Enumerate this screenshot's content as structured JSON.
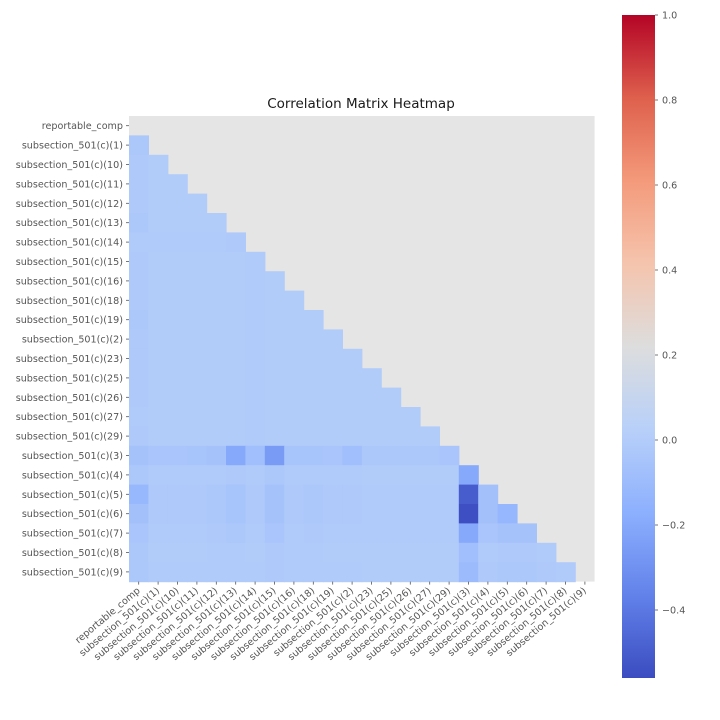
{
  "chart_data": {
    "type": "heatmap",
    "title": "Correlation Matrix Heatmap",
    "mask": "upper-triangle",
    "variables": [
      "reportable_comp",
      "subsection_501(c)(1)",
      "subsection_501(c)(10)",
      "subsection_501(c)(11)",
      "subsection_501(c)(12)",
      "subsection_501(c)(13)",
      "subsection_501(c)(14)",
      "subsection_501(c)(15)",
      "subsection_501(c)(16)",
      "subsection_501(c)(18)",
      "subsection_501(c)(19)",
      "subsection_501(c)(2)",
      "subsection_501(c)(23)",
      "subsection_501(c)(25)",
      "subsection_501(c)(26)",
      "subsection_501(c)(27)",
      "subsection_501(c)(29)",
      "subsection_501(c)(3)",
      "subsection_501(c)(4)",
      "subsection_501(c)(5)",
      "subsection_501(c)(6)",
      "subsection_501(c)(7)",
      "subsection_501(c)(8)",
      "subsection_501(c)(9)"
    ],
    "matrix_lower": [
      [],
      [
        -0.03
      ],
      [
        -0.02,
        0.0
      ],
      [
        -0.02,
        0.0,
        0.0
      ],
      [
        -0.02,
        0.0,
        0.0,
        0.0
      ],
      [
        -0.03,
        0.0,
        0.0,
        0.0,
        0.0
      ],
      [
        -0.01,
        -0.01,
        -0.01,
        -0.01,
        -0.01,
        -0.02
      ],
      [
        -0.02,
        0.0,
        0.0,
        0.0,
        0.0,
        0.0,
        -0.01
      ],
      [
        -0.02,
        0.0,
        0.0,
        0.0,
        0.0,
        0.0,
        -0.01,
        0.0
      ],
      [
        -0.02,
        0.0,
        0.0,
        0.0,
        0.0,
        0.0,
        -0.01,
        0.0,
        0.0
      ],
      [
        -0.03,
        0.0,
        0.0,
        0.0,
        0.0,
        0.0,
        -0.01,
        0.0,
        0.0,
        0.0
      ],
      [
        -0.02,
        0.0,
        0.0,
        0.0,
        0.0,
        0.0,
        -0.01,
        0.0,
        0.0,
        0.0,
        0.0
      ],
      [
        -0.02,
        0.0,
        0.0,
        0.0,
        0.0,
        0.0,
        -0.01,
        0.0,
        0.0,
        0.0,
        0.0,
        0.0
      ],
      [
        -0.02,
        0.0,
        0.0,
        0.0,
        0.0,
        0.0,
        -0.01,
        0.0,
        0.0,
        0.0,
        0.0,
        0.0,
        0.0
      ],
      [
        -0.02,
        0.0,
        0.0,
        0.0,
        0.0,
        0.0,
        -0.01,
        0.0,
        0.0,
        0.0,
        0.0,
        0.0,
        0.0,
        0.0
      ],
      [
        -0.01,
        0.0,
        0.0,
        0.0,
        0.0,
        0.0,
        -0.01,
        0.0,
        0.0,
        0.0,
        0.0,
        0.0,
        0.0,
        0.0,
        0.0
      ],
      [
        -0.02,
        0.0,
        0.0,
        0.0,
        0.0,
        0.0,
        -0.01,
        0.0,
        0.0,
        0.0,
        0.0,
        0.0,
        0.0,
        0.0,
        0.0,
        0.0
      ],
      [
        -0.06,
        -0.04,
        -0.04,
        -0.05,
        -0.06,
        -0.2,
        -0.08,
        -0.26,
        -0.05,
        -0.05,
        -0.04,
        -0.08,
        -0.03,
        -0.03,
        -0.03,
        -0.03,
        -0.04
      ],
      [
        -0.03,
        -0.01,
        -0.01,
        -0.01,
        -0.01,
        -0.02,
        -0.01,
        -0.03,
        -0.01,
        -0.01,
        -0.01,
        -0.01,
        0.0,
        0.0,
        0.0,
        0.0,
        0.0,
        -0.2
      ],
      [
        -0.12,
        -0.02,
        -0.02,
        -0.02,
        -0.03,
        -0.05,
        -0.02,
        -0.06,
        -0.02,
        -0.03,
        -0.02,
        -0.02,
        -0.01,
        -0.01,
        -0.01,
        -0.01,
        -0.01,
        -0.5,
        -0.07
      ],
      [
        -0.07,
        -0.02,
        -0.02,
        -0.02,
        -0.03,
        -0.05,
        -0.02,
        -0.06,
        -0.02,
        -0.03,
        -0.02,
        -0.02,
        -0.01,
        -0.01,
        -0.01,
        -0.01,
        -0.01,
        -0.55,
        -0.07,
        -0.13
      ],
      [
        -0.04,
        -0.01,
        -0.01,
        -0.01,
        -0.02,
        -0.03,
        -0.01,
        -0.04,
        -0.01,
        -0.02,
        -0.01,
        -0.01,
        -0.01,
        -0.01,
        -0.01,
        -0.01,
        -0.01,
        -0.2,
        -0.04,
        -0.06,
        -0.06
      ],
      [
        -0.03,
        0.0,
        0.0,
        0.0,
        -0.01,
        -0.01,
        0.0,
        -0.02,
        -0.01,
        -0.01,
        0.0,
        0.0,
        0.0,
        0.0,
        0.0,
        0.0,
        0.0,
        -0.08,
        -0.01,
        -0.02,
        -0.02,
        -0.01
      ],
      [
        -0.03,
        -0.01,
        -0.01,
        -0.01,
        -0.01,
        -0.01,
        -0.01,
        -0.02,
        -0.01,
        -0.01,
        -0.01,
        -0.01,
        0.0,
        0.0,
        0.0,
        0.0,
        0.0,
        -0.1,
        -0.02,
        -0.03,
        -0.03,
        -0.02,
        -0.01
      ]
    ],
    "colorbar": {
      "colormap": "coolwarm",
      "vmin": -0.56,
      "vmax": 1.0,
      "ticks": [
        -0.4,
        -0.2,
        0.0,
        0.2,
        0.4,
        0.6,
        0.8,
        1.0
      ],
      "tick_labels": [
        "−0.4",
        "−0.2",
        "0.0",
        "0.2",
        "0.4",
        "0.6",
        "0.8",
        "1.0"
      ]
    },
    "masked_color": "#e5e5e5",
    "grid": false
  }
}
